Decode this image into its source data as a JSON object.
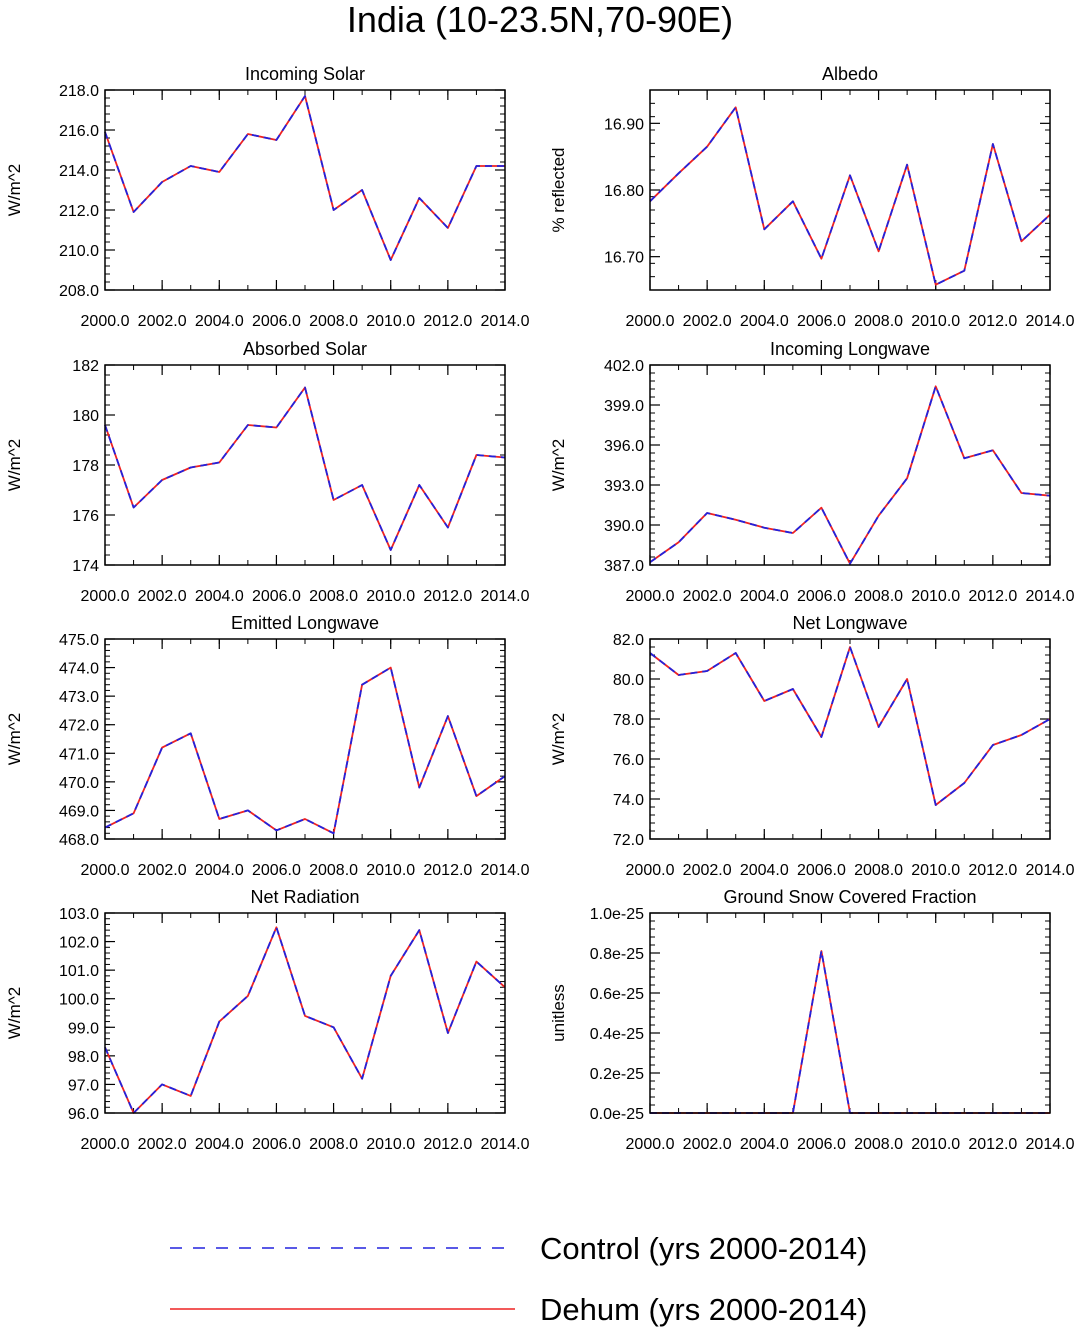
{
  "figure": {
    "title": "India (10-23.5N,70-90E)"
  },
  "legend": {
    "control_label": "Control (yrs 2000-2014)",
    "dehum_label": "Dehum (yrs 2000-2014)",
    "control_color": "#2222dd",
    "dehum_color": "#ee2222"
  },
  "chart_data": [
    {
      "type": "line",
      "title": "Incoming Solar",
      "ylabel": "W/m^2",
      "xlabel": "",
      "x": [
        2000,
        2001,
        2002,
        2003,
        2004,
        2005,
        2006,
        2007,
        2008,
        2009,
        2010,
        2011,
        2012,
        2013,
        2014
      ],
      "xlim": [
        2000,
        2014
      ],
      "xticks": [
        2000,
        2002,
        2004,
        2006,
        2008,
        2010,
        2012,
        2014
      ],
      "xtick_labels": [
        "2000.0",
        "2002.0",
        "2004.0",
        "2006.0",
        "2008.0",
        "2010.0",
        "2012.0",
        "2014.0"
      ],
      "ylim": [
        208,
        218
      ],
      "yticks": [
        208,
        210,
        212,
        214,
        216,
        218
      ],
      "ytick_labels": [
        "208.0",
        "210.0",
        "212.0",
        "214.0",
        "216.0",
        "218.0"
      ],
      "series": [
        {
          "name": "Control (yrs 2000-2014)",
          "values": [
            215.9,
            211.9,
            213.4,
            214.2,
            213.9,
            215.8,
            215.5,
            217.7,
            212.0,
            213.0,
            209.5,
            212.6,
            211.1,
            214.2,
            214.2
          ]
        },
        {
          "name": "Dehum (yrs 2000-2014)",
          "values": [
            215.9,
            211.9,
            213.4,
            214.2,
            213.9,
            215.8,
            215.5,
            217.7,
            212.0,
            213.0,
            209.5,
            212.6,
            211.1,
            214.2,
            214.2
          ]
        }
      ]
    },
    {
      "type": "line",
      "title": "Albedo",
      "ylabel": "% reflected",
      "xlabel": "",
      "x": [
        2000,
        2001,
        2002,
        2003,
        2004,
        2005,
        2006,
        2007,
        2008,
        2009,
        2010,
        2011,
        2012,
        2013,
        2014
      ],
      "xlim": [
        2000,
        2014
      ],
      "xticks": [
        2000,
        2002,
        2004,
        2006,
        2008,
        2010,
        2012,
        2014
      ],
      "xtick_labels": [
        "2000.0",
        "2002.0",
        "2004.0",
        "2006.0",
        "2008.0",
        "2010.0",
        "2012.0",
        "2014.0"
      ],
      "ylim": [
        16.65,
        16.95
      ],
      "yticks": [
        16.7,
        16.8,
        16.9
      ],
      "ytick_labels": [
        "16.70",
        "16.80",
        "16.90"
      ],
      "series": [
        {
          "name": "Control (yrs 2000-2014)",
          "values": [
            16.783,
            16.825,
            16.865,
            16.924,
            16.741,
            16.783,
            16.697,
            16.822,
            16.708,
            16.838,
            16.658,
            16.679,
            16.869,
            16.723,
            16.763
          ]
        },
        {
          "name": "Dehum (yrs 2000-2014)",
          "values": [
            16.783,
            16.825,
            16.865,
            16.924,
            16.741,
            16.783,
            16.697,
            16.822,
            16.708,
            16.838,
            16.658,
            16.679,
            16.869,
            16.723,
            16.763
          ]
        }
      ]
    },
    {
      "type": "line",
      "title": "Absorbed Solar",
      "ylabel": "W/m^2",
      "xlabel": "",
      "x": [
        2000,
        2001,
        2002,
        2003,
        2004,
        2005,
        2006,
        2007,
        2008,
        2009,
        2010,
        2011,
        2012,
        2013,
        2014
      ],
      "xlim": [
        2000,
        2014
      ],
      "xticks": [
        2000,
        2002,
        2004,
        2006,
        2008,
        2010,
        2012,
        2014
      ],
      "xtick_labels": [
        "2000.0",
        "2002.0",
        "2004.0",
        "2006.0",
        "2008.0",
        "2010.0",
        "2012.0",
        "2014.0"
      ],
      "ylim": [
        174,
        182
      ],
      "yticks": [
        174,
        176,
        178,
        180,
        182
      ],
      "ytick_labels": [
        "174",
        "176",
        "178",
        "180",
        "182"
      ],
      "series": [
        {
          "name": "Control (yrs 2000-2014)",
          "values": [
            179.6,
            176.3,
            177.4,
            177.9,
            178.1,
            179.6,
            179.5,
            181.1,
            176.6,
            177.2,
            174.6,
            177.2,
            175.5,
            178.4,
            178.3
          ]
        },
        {
          "name": "Dehum (yrs 2000-2014)",
          "values": [
            179.6,
            176.3,
            177.4,
            177.9,
            178.1,
            179.6,
            179.5,
            181.1,
            176.6,
            177.2,
            174.6,
            177.2,
            175.5,
            178.4,
            178.3
          ]
        }
      ]
    },
    {
      "type": "line",
      "title": "Incoming Longwave",
      "ylabel": "W/m^2",
      "xlabel": "",
      "x": [
        2000,
        2001,
        2002,
        2003,
        2004,
        2005,
        2006,
        2007,
        2008,
        2009,
        2010,
        2011,
        2012,
        2013,
        2014
      ],
      "xlim": [
        2000,
        2014
      ],
      "xticks": [
        2000,
        2002,
        2004,
        2006,
        2008,
        2010,
        2012,
        2014
      ],
      "xtick_labels": [
        "2000.0",
        "2002.0",
        "2004.0",
        "2006.0",
        "2008.0",
        "2010.0",
        "2012.0",
        "2014.0"
      ],
      "ylim": [
        387,
        402
      ],
      "yticks": [
        387,
        390,
        393,
        396,
        399,
        402
      ],
      "ytick_labels": [
        "387.0",
        "390.0",
        "393.0",
        "396.0",
        "399.0",
        "402.0"
      ],
      "series": [
        {
          "name": "Control (yrs 2000-2014)",
          "values": [
            387.2,
            388.7,
            390.9,
            390.4,
            389.8,
            389.4,
            391.3,
            387.1,
            390.7,
            393.5,
            400.4,
            395.0,
            395.6,
            392.4,
            392.2
          ]
        },
        {
          "name": "Dehum (yrs 2000-2014)",
          "values": [
            387.2,
            388.7,
            390.9,
            390.4,
            389.8,
            389.4,
            391.3,
            387.1,
            390.7,
            393.5,
            400.4,
            395.0,
            395.6,
            392.4,
            392.2
          ]
        }
      ]
    },
    {
      "type": "line",
      "title": "Emitted Longwave",
      "ylabel": "W/m^2",
      "xlabel": "",
      "x": [
        2000,
        2001,
        2002,
        2003,
        2004,
        2005,
        2006,
        2007,
        2008,
        2009,
        2010,
        2011,
        2012,
        2013,
        2014
      ],
      "xlim": [
        2000,
        2014
      ],
      "xticks": [
        2000,
        2002,
        2004,
        2006,
        2008,
        2010,
        2012,
        2014
      ],
      "xtick_labels": [
        "2000.0",
        "2002.0",
        "2004.0",
        "2006.0",
        "2008.0",
        "2010.0",
        "2012.0",
        "2014.0"
      ],
      "ylim": [
        468,
        475
      ],
      "yticks": [
        468,
        469,
        470,
        471,
        472,
        473,
        474,
        475
      ],
      "ytick_labels": [
        "468.0",
        "469.0",
        "470.0",
        "471.0",
        "472.0",
        "473.0",
        "474.0",
        "475.0"
      ],
      "series": [
        {
          "name": "Control (yrs 2000-2014)",
          "values": [
            468.4,
            468.9,
            471.2,
            471.7,
            468.7,
            469.0,
            468.3,
            468.7,
            468.2,
            473.4,
            474.0,
            469.8,
            472.3,
            469.5,
            470.2
          ]
        },
        {
          "name": "Dehum (yrs 2000-2014)",
          "values": [
            468.4,
            468.9,
            471.2,
            471.7,
            468.7,
            469.0,
            468.3,
            468.7,
            468.2,
            473.4,
            474.0,
            469.8,
            472.3,
            469.5,
            470.2
          ]
        }
      ]
    },
    {
      "type": "line",
      "title": "Net Longwave",
      "ylabel": "W/m^2",
      "xlabel": "",
      "x": [
        2000,
        2001,
        2002,
        2003,
        2004,
        2005,
        2006,
        2007,
        2008,
        2009,
        2010,
        2011,
        2012,
        2013,
        2014
      ],
      "xlim": [
        2000,
        2014
      ],
      "xticks": [
        2000,
        2002,
        2004,
        2006,
        2008,
        2010,
        2012,
        2014
      ],
      "xtick_labels": [
        "2000.0",
        "2002.0",
        "2004.0",
        "2006.0",
        "2008.0",
        "2010.0",
        "2012.0",
        "2014.0"
      ],
      "ylim": [
        72,
        82
      ],
      "yticks": [
        72,
        74,
        76,
        78,
        80,
        82
      ],
      "ytick_labels": [
        "72.0",
        "74.0",
        "76.0",
        "78.0",
        "80.0",
        "82.0"
      ],
      "series": [
        {
          "name": "Control (yrs 2000-2014)",
          "values": [
            81.3,
            80.2,
            80.4,
            81.3,
            78.9,
            79.5,
            77.1,
            81.6,
            77.6,
            80.0,
            73.7,
            74.8,
            76.7,
            77.2,
            78.0
          ]
        },
        {
          "name": "Dehum (yrs 2000-2014)",
          "values": [
            81.3,
            80.2,
            80.4,
            81.3,
            78.9,
            79.5,
            77.1,
            81.6,
            77.6,
            80.0,
            73.7,
            74.8,
            76.7,
            77.2,
            78.0
          ]
        }
      ]
    },
    {
      "type": "line",
      "title": "Net Radiation",
      "ylabel": "W/m^2",
      "xlabel": "",
      "x": [
        2000,
        2001,
        2002,
        2003,
        2004,
        2005,
        2006,
        2007,
        2008,
        2009,
        2010,
        2011,
        2012,
        2013,
        2014
      ],
      "xlim": [
        2000,
        2014
      ],
      "xticks": [
        2000,
        2002,
        2004,
        2006,
        2008,
        2010,
        2012,
        2014
      ],
      "xtick_labels": [
        "2000.0",
        "2002.0",
        "2004.0",
        "2006.0",
        "2008.0",
        "2010.0",
        "2012.0",
        "2014.0"
      ],
      "ylim": [
        96,
        103
      ],
      "yticks": [
        96,
        97,
        98,
        99,
        100,
        101,
        102,
        103
      ],
      "ytick_labels": [
        "96.0",
        "97.0",
        "98.0",
        "99.0",
        "100.0",
        "101.0",
        "102.0",
        "103.0"
      ],
      "series": [
        {
          "name": "Control (yrs 2000-2014)",
          "values": [
            98.3,
            96.0,
            97.0,
            96.6,
            99.2,
            100.1,
            102.5,
            99.4,
            99.0,
            97.2,
            100.8,
            102.4,
            98.8,
            101.3,
            100.4
          ]
        },
        {
          "name": "Dehum (yrs 2000-2014)",
          "values": [
            98.3,
            96.0,
            97.0,
            96.6,
            99.2,
            100.1,
            102.5,
            99.4,
            99.0,
            97.2,
            100.8,
            102.4,
            98.8,
            101.3,
            100.4
          ]
        }
      ]
    },
    {
      "type": "line",
      "title": "Ground Snow Covered Fraction",
      "ylabel": "unitless",
      "xlabel": "",
      "x": [
        2000,
        2001,
        2002,
        2003,
        2004,
        2005,
        2006,
        2007,
        2008,
        2009,
        2010,
        2011,
        2012,
        2013,
        2014
      ],
      "xlim": [
        2000,
        2014
      ],
      "xticks": [
        2000,
        2002,
        2004,
        2006,
        2008,
        2010,
        2012,
        2014
      ],
      "xtick_labels": [
        "2000.0",
        "2002.0",
        "2004.0",
        "2006.0",
        "2008.0",
        "2010.0",
        "2012.0",
        "2014.0"
      ],
      "ylim": [
        0,
        1e-25
      ],
      "yticks": [
        0,
        2e-26,
        4e-26,
        6e-26,
        8e-26,
        1e-25
      ],
      "ytick_labels": [
        "0.0e-25",
        "0.2e-25",
        "0.4e-25",
        "0.6e-25",
        "0.8e-25",
        "1.0e-25"
      ],
      "series": [
        {
          "name": "Control (yrs 2000-2014)",
          "values": [
            0,
            0,
            0,
            0,
            0,
            0,
            8.1e-26,
            0,
            0,
            0,
            0,
            0,
            0,
            0,
            0
          ]
        },
        {
          "name": "Dehum (yrs 2000-2014)",
          "values": [
            0,
            0,
            0,
            0,
            0,
            0,
            8.1e-26,
            0,
            0,
            0,
            0,
            0,
            0,
            0,
            0
          ]
        }
      ]
    }
  ]
}
